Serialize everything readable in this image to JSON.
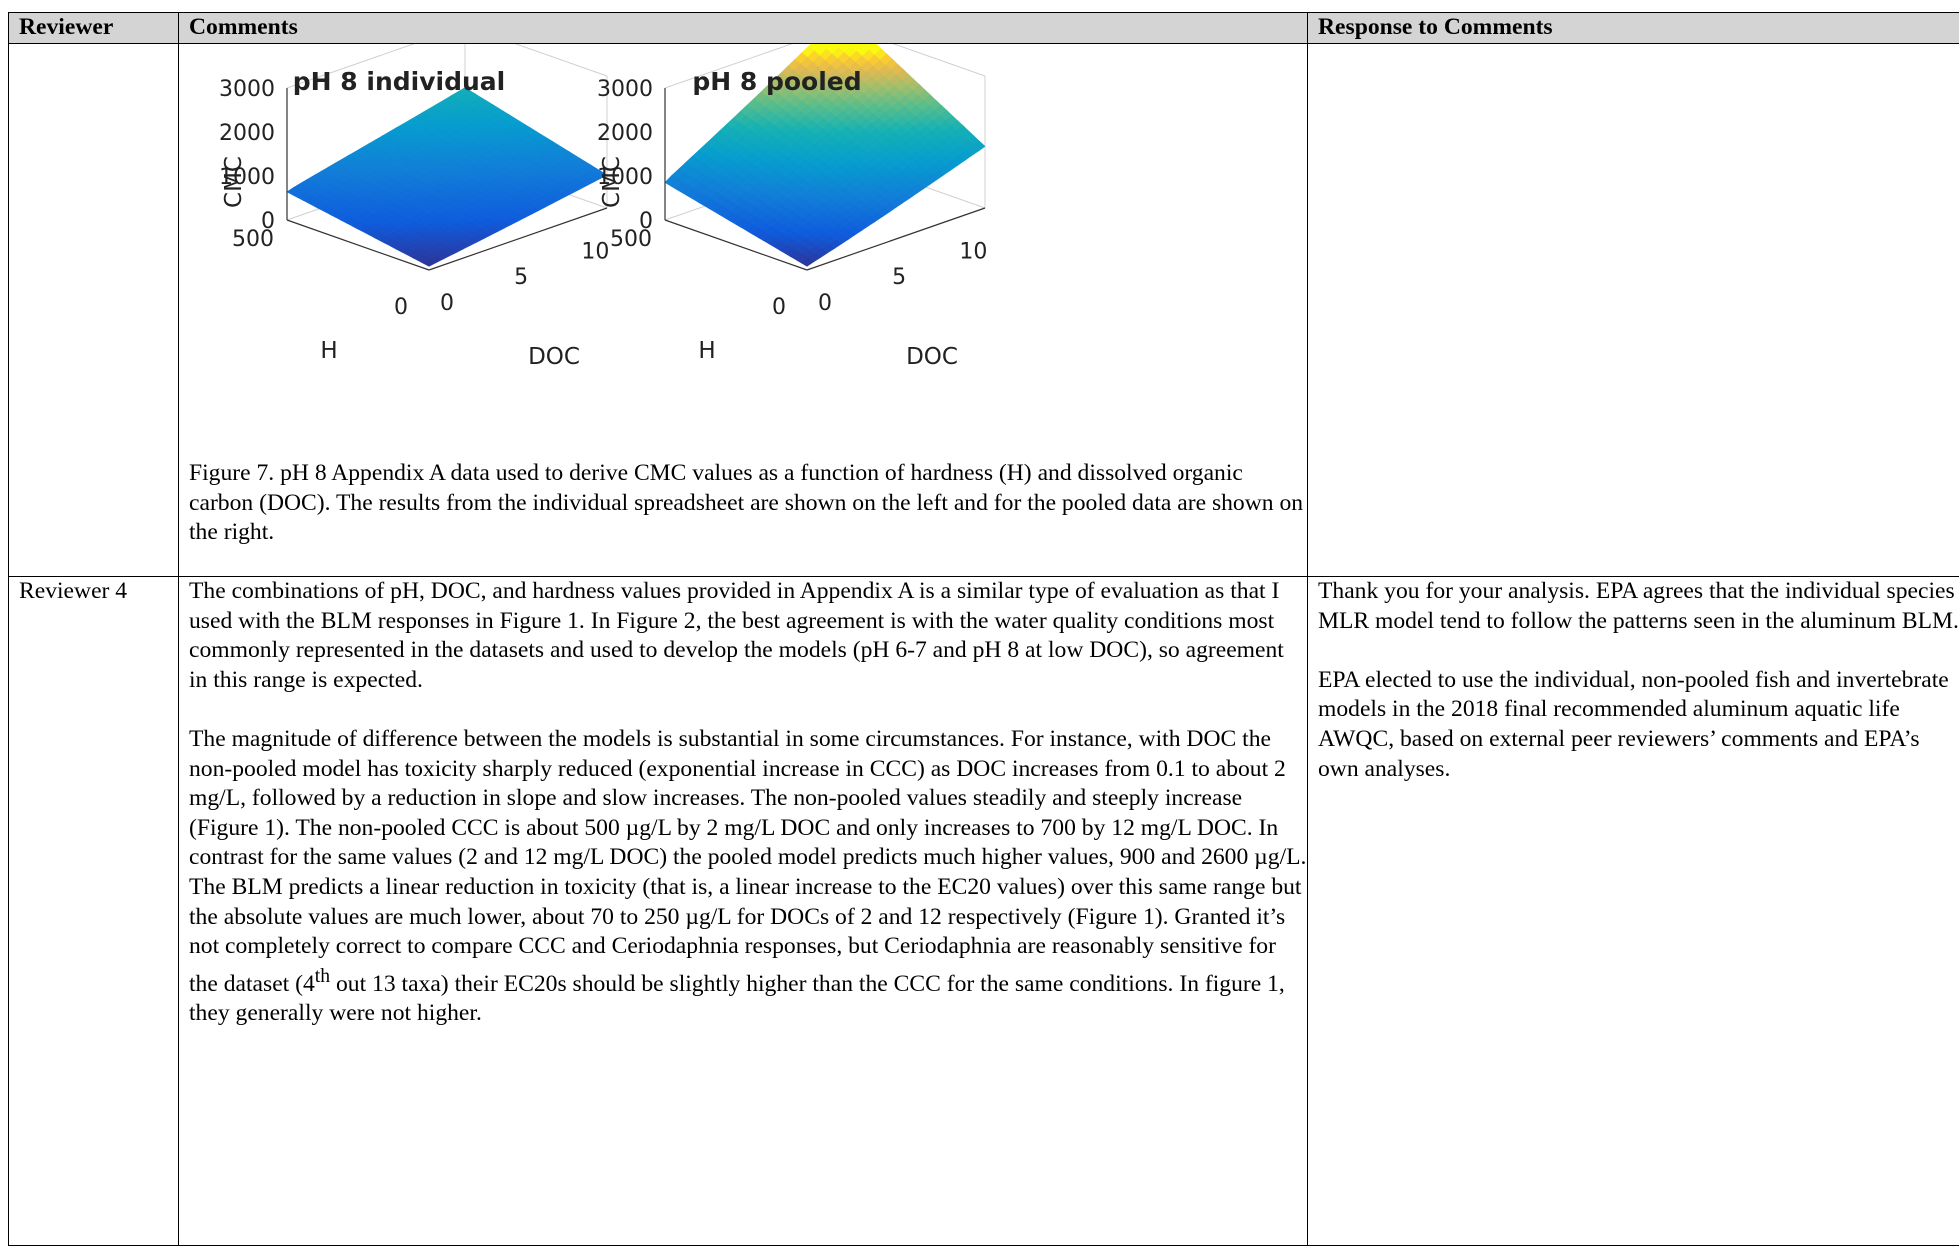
{
  "table": {
    "headers": {
      "reviewer": "Reviewer",
      "comments": "Comments",
      "response": "Response to Comments"
    },
    "figure_row": {
      "caption": "Figure 7. pH 8 Appendix A data used to derive CMC values as a function of hardness (H) and dissolved organic carbon (DOC).  The results from the individual spreadsheet are shown on the left and for the pooled data are shown on the right."
    },
    "reviewer4_row": {
      "reviewer": "Reviewer 4",
      "comment_p1": "The combinations of pH, DOC, and hardness values provided in Appendix A is a similar type of evaluation as that I used with the BLM responses in Figure 1. In Figure 2, the best agreement is with the water quality conditions most commonly represented in the datasets and used to develop the models (pH 6-7 and pH 8 at low DOC), so agreement in this range is expected.",
      "comment_p2_before_sup": "The magnitude of difference between the models is substantial in some circumstances. For instance, with DOC the non-pooled model has toxicity sharply reduced (exponential increase in CCC) as DOC increases from 0.1 to about 2 mg/L, followed by a reduction in slope and slow increases. The non-pooled values steadily and steeply increase (Figure 1). The non-pooled CCC is about 500 µg/L by 2 mg/L DOC and only increases to 700 by 12 mg/L DOC. In contrast for the same values (2 and 12 mg/L DOC) the pooled model predicts much higher values, 900 and 2600 µg/L. The BLM predicts a linear reduction in toxicity (that is, a linear increase to the EC20 values) over this same range but the absolute values are much lower, about 70 to 250 µg/L for DOCs of 2 and 12 respectively (Figure 1). Granted it’s not completely correct to compare CCC and Ceriodaphnia responses, but Ceriodaphnia are reasonably sensitive for the dataset (4",
      "comment_p2_sup": "th",
      "comment_p2_after_sup": " out 13 taxa) their EC20s should be slightly higher than the CCC for the same conditions. In figure 1, they generally were not higher.",
      "response_p1": "Thank you for your analysis. EPA agrees that the individual species MLR model tend to follow the patterns seen in the aluminum BLM.",
      "response_p2": "EPA elected to use the individual, non-pooled fish and invertebrate models in the 2018 final recommended aluminum aquatic life AWQC, based on external peer reviewers’ comments and EPA’s own analyses."
    }
  },
  "chart_data": [
    {
      "type": "surface",
      "title": "pH 8 individual",
      "zlabel": "CMC",
      "xlabel": "DOC",
      "ylabel": "H",
      "zticks": [
        "0",
        "1000",
        "2000",
        "3000"
      ],
      "xticks": [
        "0",
        "5",
        "10"
      ],
      "yticks": [
        "0",
        "500"
      ],
      "zlim": [
        0,
        3000
      ],
      "xlim": [
        0,
        12
      ],
      "ylim": [
        0,
        500
      ],
      "colormap": "parula",
      "corner_values": {
        "doc0_h0": 100,
        "doc12_h0": 750,
        "doc0_h500": 750,
        "doc12_h500": 1600
      }
    },
    {
      "type": "surface",
      "title": "pH 8 pooled",
      "zlabel": "CMC",
      "xlabel": "DOC",
      "ylabel": "H",
      "zticks": [
        "0",
        "1000",
        "2000",
        "3000"
      ],
      "xticks": [
        "0",
        "5",
        "10"
      ],
      "yticks": [
        "0",
        "500"
      ],
      "zlim": [
        0,
        3000
      ],
      "xlim": [
        0,
        12
      ],
      "ylim": [
        0,
        500
      ],
      "colormap": "parula",
      "corner_values": {
        "doc0_h0": 100,
        "doc12_h0": 1400,
        "doc0_h500": 1000,
        "doc12_h500": 3300
      }
    }
  ]
}
